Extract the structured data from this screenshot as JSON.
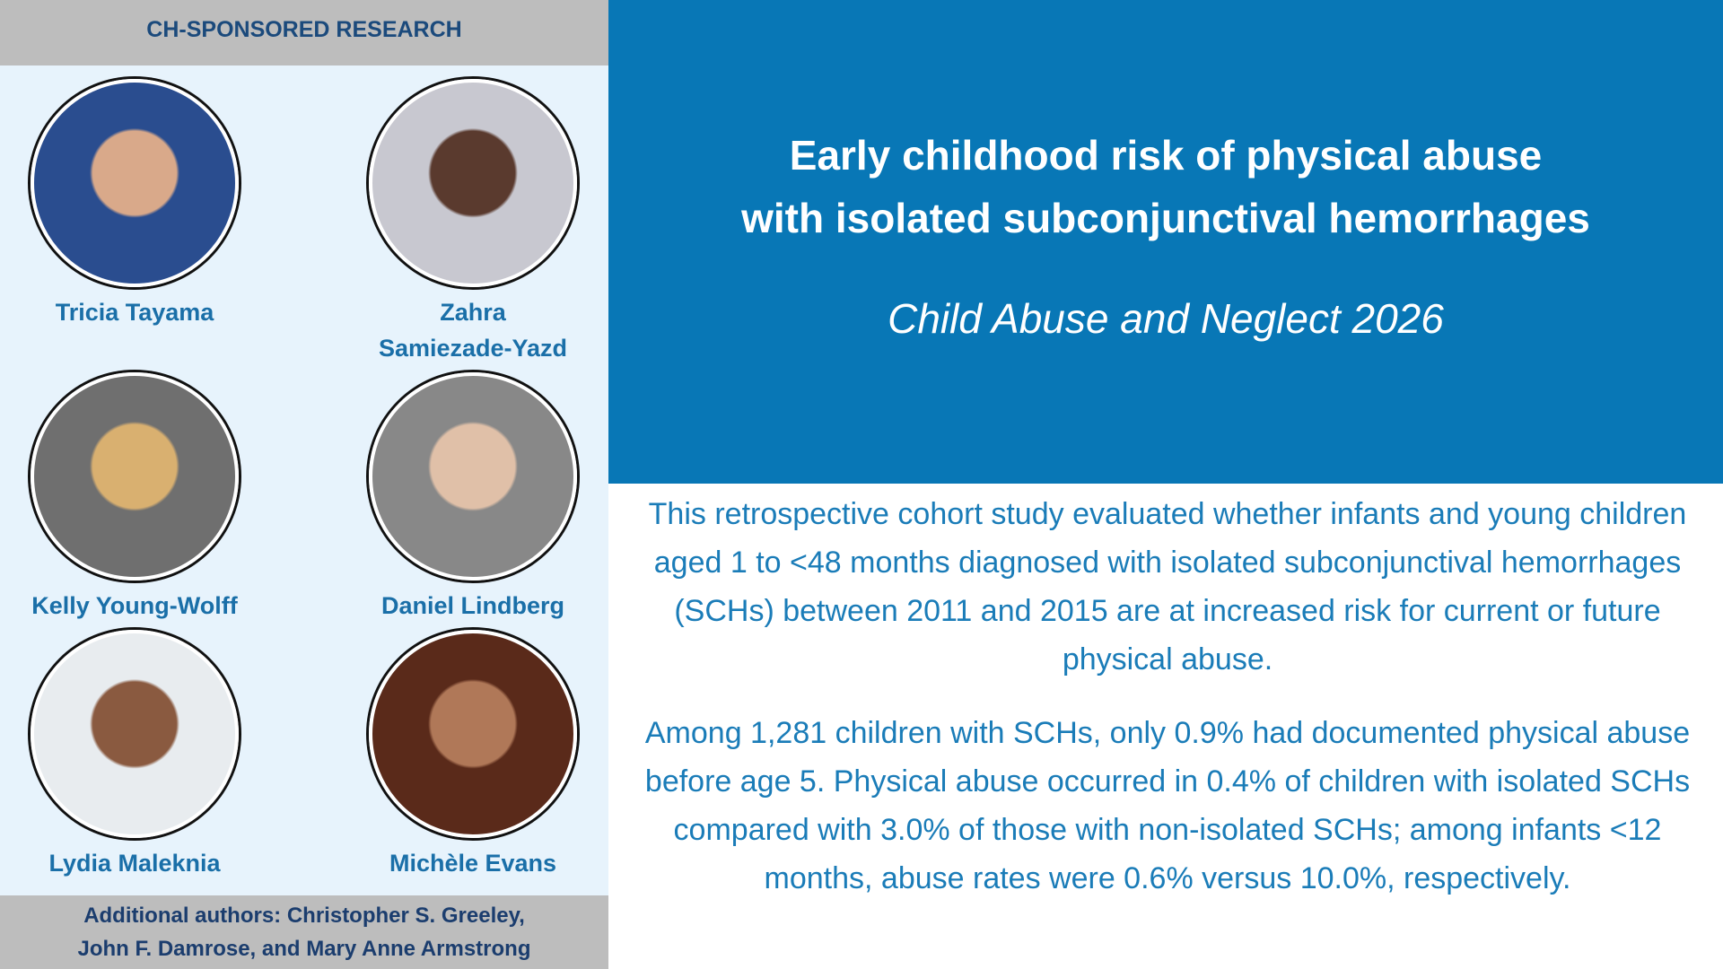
{
  "header": "CH-SPONSORED RESEARCH",
  "authors": [
    {
      "name_lines": [
        "Tricia Tayama"
      ]
    },
    {
      "name_lines": [
        "Zahra",
        "Samiezade-Yazd"
      ]
    },
    {
      "name_lines": [
        "Kelly Young-Wolff"
      ]
    },
    {
      "name_lines": [
        "Daniel Lindberg"
      ]
    },
    {
      "name_lines": [
        "Lydia Maleknia"
      ]
    },
    {
      "name_lines": [
        "Michèle Evans"
      ]
    }
  ],
  "footer_lines": [
    "Additional authors: Christopher S. Greeley,",
    "John F. Damrose, and Mary Anne Armstrong"
  ],
  "title_lines": [
    "Early childhood risk of physical abuse",
    "with isolated subconjunctival hemorrhages"
  ],
  "journal": "Child Abuse and Neglect 2026",
  "paragraphs": [
    "This retrospective cohort study evaluated whether infants and young children aged 1 to <48 months diagnosed with isolated subconjunctival hemorrhages (SCHs) between 2011 and 2015 are at increased risk for current or future physical abuse.",
    "Among 1,281 children with SCHs, only 0.9% had documented physical abuse before age 5. Physical abuse occurred in 0.4% of children with isolated SCHs compared with 3.0% of those with non-isolated SCHs; among infants <12 months, abuse rates were 0.6% versus 10.0%, respectively."
  ]
}
